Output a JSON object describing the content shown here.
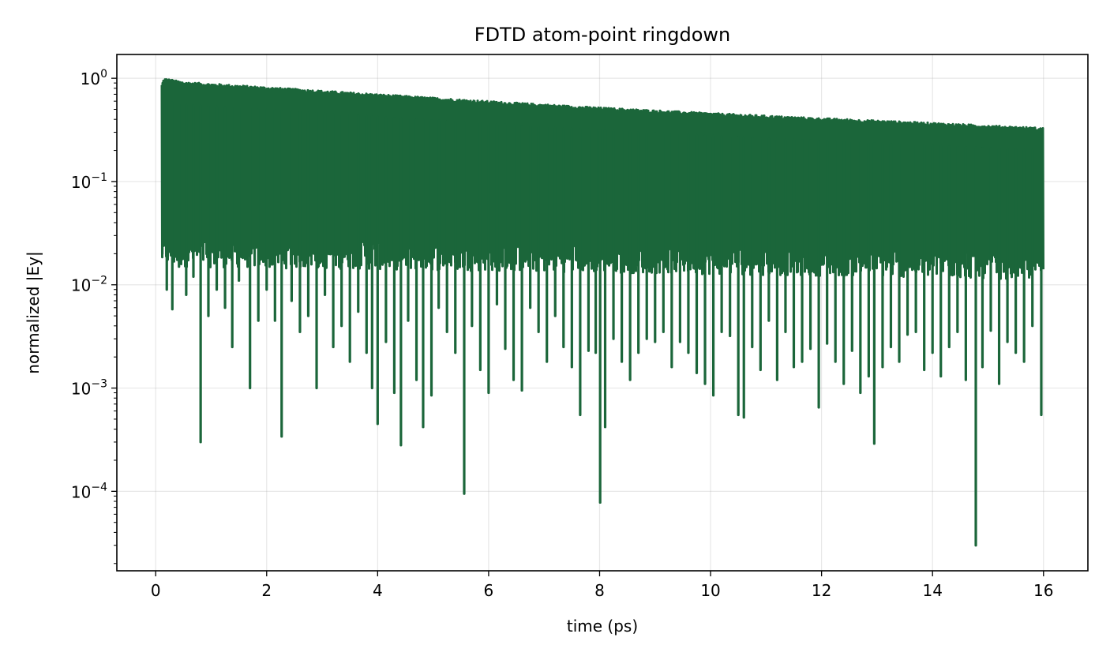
{
  "chart_data": {
    "type": "line",
    "title": "FDTD atom-point ringdown",
    "xlabel": "time (ps)",
    "ylabel": "normalized |Ey|",
    "xlim": [
      -0.7,
      16.8
    ],
    "ylim": [
      1.7e-05,
      1.7
    ],
    "yscale": "log",
    "grid": true,
    "x_ticks": [
      0,
      2,
      4,
      6,
      8,
      10,
      12,
      14,
      16
    ],
    "x_tick_labels": [
      "0",
      "2",
      "4",
      "6",
      "8",
      "10",
      "12",
      "14",
      "16"
    ],
    "y_ticks": [
      {
        "value": 1,
        "base": "10",
        "exp": "0"
      },
      {
        "value": 0.1,
        "base": "10",
        "exp": "−1"
      },
      {
        "value": 0.01,
        "base": "10",
        "exp": "−2"
      },
      {
        "value": 0.001,
        "base": "10",
        "exp": "−3"
      },
      {
        "value": 0.0001,
        "base": "10",
        "exp": "−4"
      }
    ],
    "series": [
      {
        "color": "#1b663a",
        "signal": {
          "t_start": 0.1,
          "t_end": 16.0,
          "peak": 1.0,
          "end_envelope": 0.33,
          "typical_min": [
            0.03,
            0.015
          ]
        },
        "upper_envelope": {
          "x": [
            0.1,
            0.15,
            0.5,
            2,
            4,
            6,
            8,
            10,
            12,
            14,
            16
          ],
          "y": [
            0.85,
            1.0,
            0.92,
            0.82,
            0.7,
            0.6,
            0.52,
            0.46,
            0.41,
            0.37,
            0.33
          ]
        },
        "dips": {
          "x": [
            0.12,
            0.2,
            0.3,
            0.42,
            0.55,
            0.68,
            0.81,
            0.95,
            1.1,
            1.25,
            1.38,
            1.5,
            1.7,
            1.85,
            2.0,
            2.15,
            2.27,
            2.45,
            2.6,
            2.75,
            2.9,
            3.05,
            3.2,
            3.35,
            3.5,
            3.65,
            3.8,
            3.9,
            4.0,
            4.15,
            4.3,
            4.42,
            4.55,
            4.7,
            4.82,
            4.97,
            5.1,
            5.25,
            5.4,
            5.56,
            5.7,
            5.85,
            6.0,
            6.15,
            6.3,
            6.45,
            6.6,
            6.75,
            6.9,
            7.05,
            7.2,
            7.35,
            7.5,
            7.65,
            7.8,
            7.93,
            8.01,
            8.1,
            8.25,
            8.4,
            8.55,
            8.7,
            8.85,
            9.0,
            9.15,
            9.3,
            9.45,
            9.6,
            9.75,
            9.9,
            10.05,
            10.2,
            10.35,
            10.5,
            10.6,
            10.75,
            10.9,
            11.05,
            11.2,
            11.35,
            11.5,
            11.65,
            11.8,
            11.95,
            12.1,
            12.25,
            12.4,
            12.55,
            12.7,
            12.85,
            12.95,
            13.1,
            13.25,
            13.4,
            13.55,
            13.7,
            13.85,
            14.0,
            14.15,
            14.3,
            14.45,
            14.6,
            14.78,
            14.9,
            15.05,
            15.2,
            15.35,
            15.5,
            15.65,
            15.8,
            15.96
          ],
          "y": [
            0.02,
            0.009,
            0.0058,
            0.015,
            0.008,
            0.012,
            0.0003,
            0.005,
            0.009,
            0.006,
            0.0025,
            0.011,
            0.001,
            0.0045,
            0.009,
            0.0045,
            0.00034,
            0.007,
            0.0035,
            0.005,
            0.001,
            0.008,
            0.0025,
            0.004,
            0.0018,
            0.0055,
            0.0022,
            0.001,
            0.00045,
            0.0028,
            0.0009,
            0.00028,
            0.0045,
            0.0012,
            0.00042,
            0.00085,
            0.006,
            0.0035,
            0.0022,
            9.5e-05,
            0.004,
            0.0015,
            0.0009,
            0.0065,
            0.0024,
            0.0012,
            0.00095,
            0.006,
            0.0035,
            0.0018,
            0.005,
            0.0025,
            0.0016,
            0.00055,
            0.0023,
            0.0022,
            7.8e-05,
            0.00042,
            0.003,
            0.0018,
            0.0012,
            0.0022,
            0.003,
            0.0028,
            0.0035,
            0.0016,
            0.0028,
            0.0022,
            0.0014,
            0.0011,
            0.00085,
            0.0035,
            0.0032,
            0.00055,
            0.00052,
            0.0025,
            0.0015,
            0.0045,
            0.0012,
            0.0035,
            0.0016,
            0.0018,
            0.0024,
            0.00065,
            0.0027,
            0.0018,
            0.0011,
            0.0023,
            0.0009,
            0.0013,
            0.00029,
            0.0016,
            0.0025,
            0.0018,
            0.0033,
            0.0035,
            0.0015,
            0.0022,
            0.0013,
            0.0025,
            0.0035,
            0.0012,
            3e-05,
            0.0016,
            0.0036,
            0.0011,
            0.0028,
            0.0022,
            0.0018,
            0.004,
            0.00055
          ]
        }
      }
    ]
  }
}
